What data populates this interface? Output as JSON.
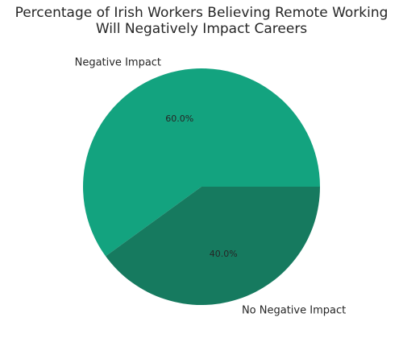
{
  "chart_data": {
    "type": "pie",
    "title_lines": [
      "Percentage of Irish Workers Believing Remote Working",
      "Will Negatively Impact Careers"
    ],
    "categories": [
      "Negative Impact",
      "No Negative Impact"
    ],
    "values": [
      60.0,
      40.0
    ],
    "value_labels": [
      "60.0%",
      "40.0%"
    ],
    "colors": [
      "#13a37f",
      "#167a5f"
    ],
    "start_angle_deg": 0,
    "direction": "counterclockwise",
    "legend": "none"
  }
}
